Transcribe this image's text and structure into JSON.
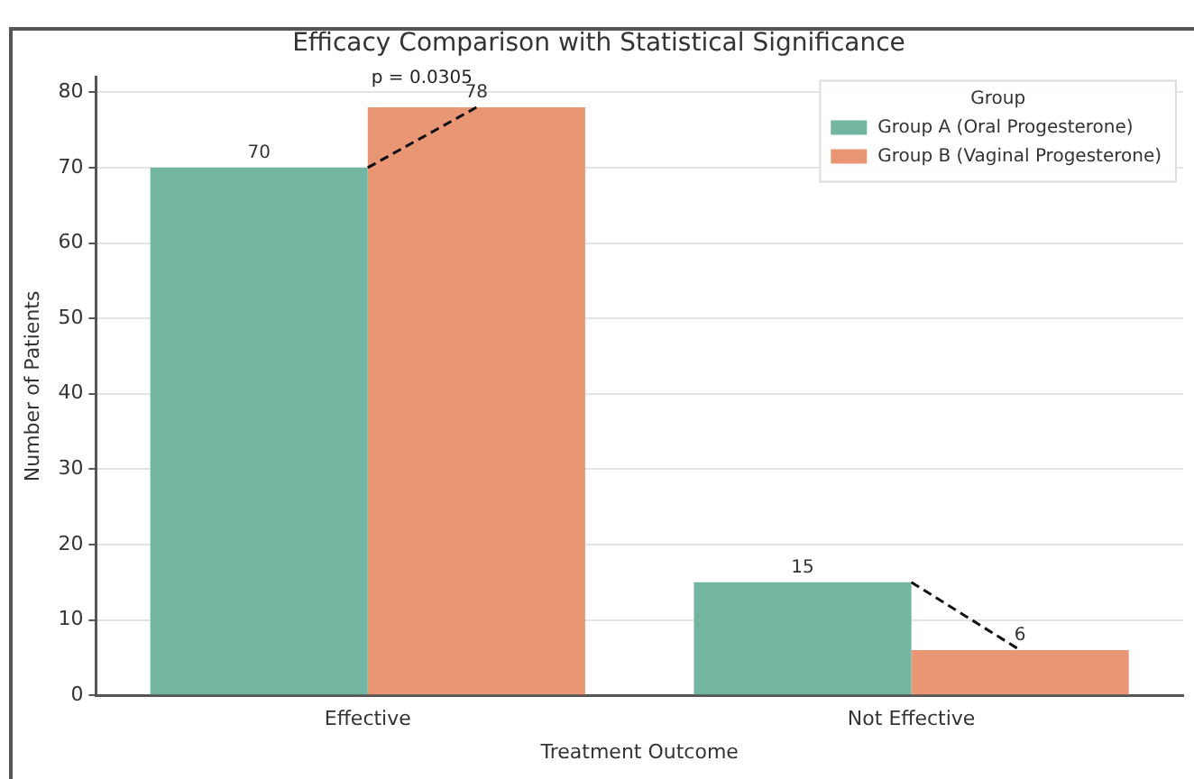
{
  "chart_data": {
    "type": "bar",
    "title": "Efficacy Comparison with Statistical Significance",
    "xlabel": "Treatment Outcome",
    "ylabel": "Number of Patients",
    "legend_title": "Group",
    "categories": [
      "Effective",
      "Not Effective"
    ],
    "series": [
      {
        "name": "Group A (Oral Progesterone)",
        "color": "#72b6a1",
        "values": [
          70,
          15
        ]
      },
      {
        "name": "Group B (Vaginal Progesterone)",
        "color": "#e99675",
        "values": [
          78,
          6
        ]
      }
    ],
    "ylim": [
      0,
      82
    ],
    "yticks": [
      0,
      10,
      20,
      30,
      40,
      50,
      60,
      70,
      80
    ],
    "grid": "y",
    "legend": "top right",
    "data_labels": true,
    "annotations": [
      {
        "text": "p = 0.0305",
        "x": "Effective",
        "y": 78
      }
    ]
  }
}
